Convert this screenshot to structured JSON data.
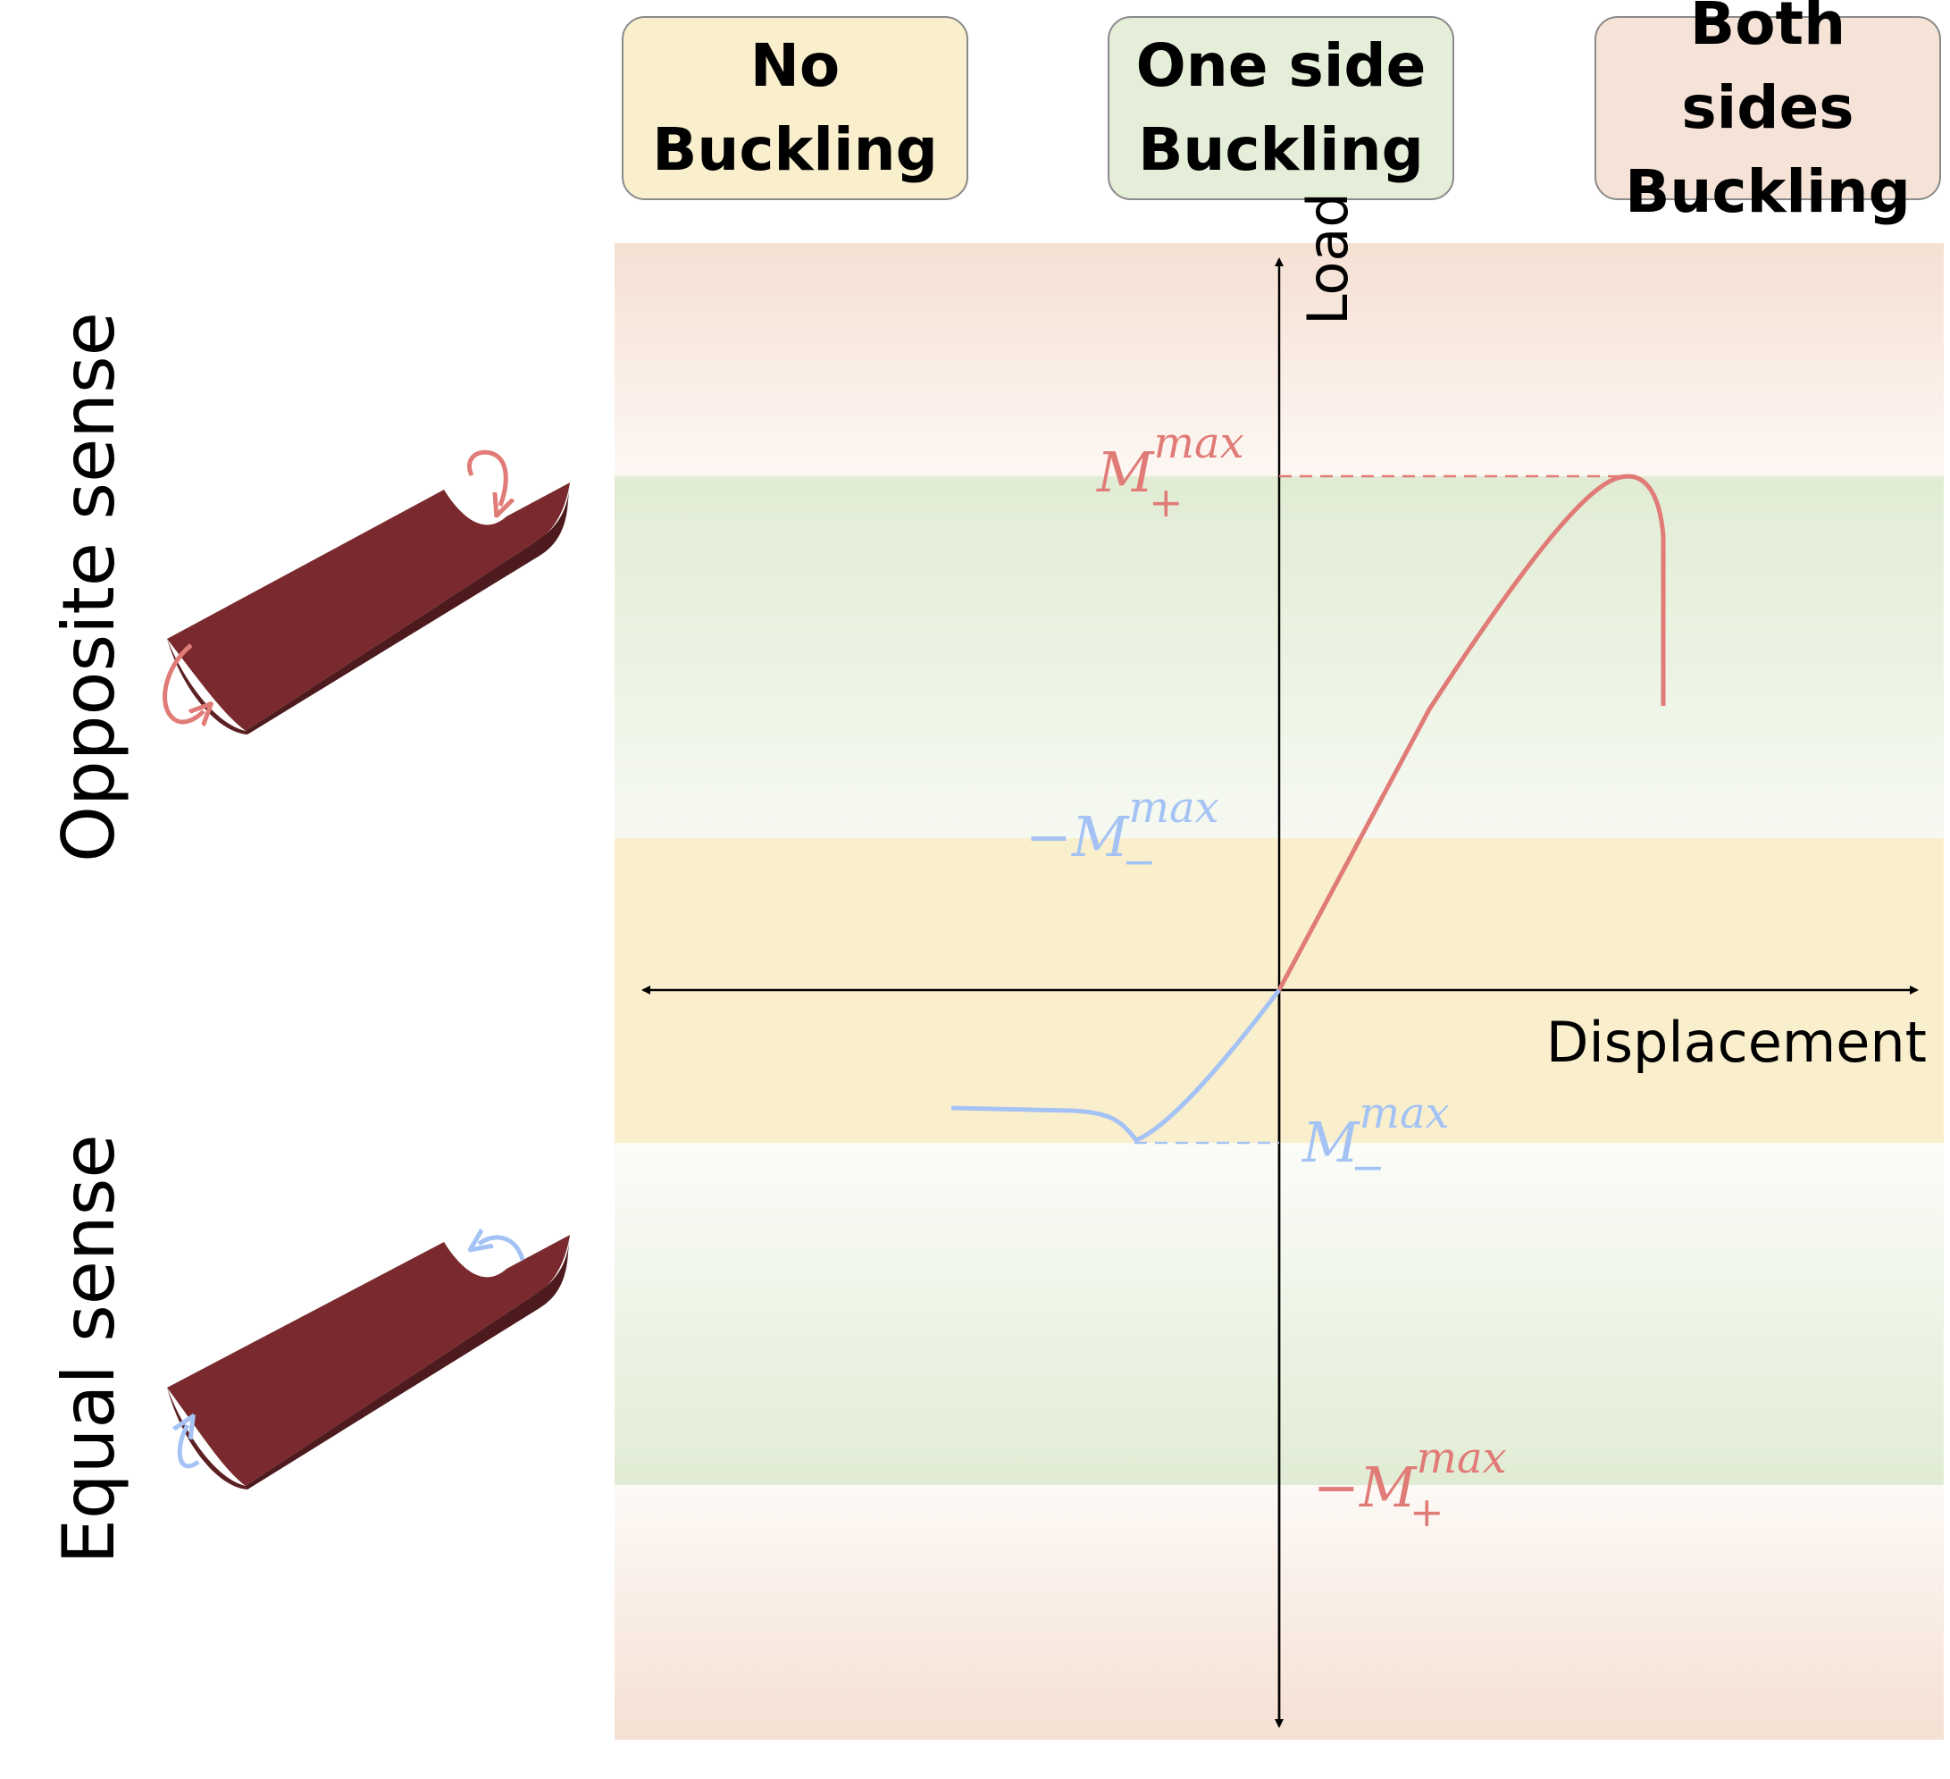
{
  "legend": {
    "no_buckling": "No\nBuckling",
    "one_side": "One side\nBuckling",
    "both_sides": "Both sides\nBuckling"
  },
  "side_labels": {
    "opposite": "Opposite sense",
    "equal": "Equal sense"
  },
  "axes": {
    "y_label": "Load",
    "x_label": "Displacement"
  },
  "levels": {
    "m_plus_max": {
      "prefix": "",
      "base": "M",
      "sub": "+",
      "sup": "max"
    },
    "neg_m_minus_max": {
      "prefix": "−",
      "base": "M",
      "sub": "−",
      "sup": "max"
    },
    "m_minus_max": {
      "prefix": "",
      "base": "M",
      "sub": "−",
      "sup": "max"
    },
    "neg_m_plus_max": {
      "prefix": "−",
      "base": "M",
      "sub": "+",
      "sup": "max"
    }
  },
  "colors": {
    "no_buckling": "#faefcd",
    "one_side": "#e4eed9",
    "both_sides": "#f5e3d8",
    "red_curve": "#e07b77",
    "blue_curve": "#a4c2f4",
    "beam": "#7a2a2e",
    "beam_dark": "#4d1a1d"
  }
}
